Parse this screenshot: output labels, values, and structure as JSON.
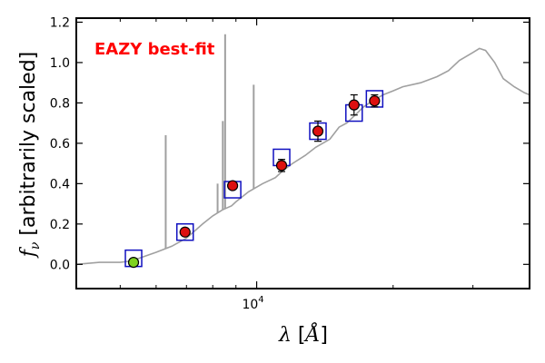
{
  "chart_data": {
    "type": "scatter",
    "title": "",
    "annotation": "EAZY best-fit",
    "annotation_position": "top-left",
    "annotation_color": "#ff0000",
    "xlabel": "λ [Å]",
    "ylabel": "f_ν [arbitrarily scaled]",
    "xscale": "log",
    "xlim": [
      4000,
      40000
    ],
    "ylim": [
      -0.12,
      1.22
    ],
    "yticks": [
      {
        "value": 0.0,
        "label": "0.0"
      },
      {
        "value": 0.2,
        "label": "0.2"
      },
      {
        "value": 0.4,
        "label": "0.4"
      },
      {
        "value": 0.6,
        "label": "0.6"
      },
      {
        "value": 0.8,
        "label": "0.8"
      },
      {
        "value": 1.0,
        "label": "1.0"
      },
      {
        "value": 1.2,
        "label": "1.2"
      }
    ],
    "xticks_major": [
      {
        "value": 10000,
        "base": "10",
        "exp": "4"
      }
    ],
    "xticks_minor": [
      5000,
      6000,
      7000,
      8000,
      9000,
      20000,
      30000
    ],
    "grid": false,
    "colors": {
      "sed": "#a0a0a0",
      "model_box": "#1010c0",
      "observed": "#dd1010",
      "upper_limit": "#7ed31e",
      "errorbar": "#000000"
    },
    "sed": [
      [
        4000,
        0.0
      ],
      [
        4500,
        0.01
      ],
      [
        5000,
        0.01
      ],
      [
        5200,
        0.015
      ],
      [
        5500,
        0.03
      ],
      [
        6000,
        0.06
      ],
      [
        6500,
        0.09
      ],
      [
        7000,
        0.13
      ],
      [
        7600,
        0.2
      ],
      [
        8000,
        0.24
      ],
      [
        8400,
        0.27
      ],
      [
        8800,
        0.29
      ],
      [
        9000,
        0.31
      ],
      [
        9600,
        0.36
      ],
      [
        10300,
        0.4
      ],
      [
        11000,
        0.43
      ],
      [
        11500,
        0.47
      ],
      [
        12000,
        0.5
      ],
      [
        12800,
        0.54
      ],
      [
        13500,
        0.58
      ],
      [
        14500,
        0.62
      ],
      [
        15200,
        0.68
      ],
      [
        15800,
        0.7
      ],
      [
        16500,
        0.74
      ],
      [
        17200,
        0.78
      ],
      [
        18000,
        0.81
      ],
      [
        19000,
        0.84
      ],
      [
        20000,
        0.86
      ],
      [
        21000,
        0.88
      ],
      [
        23000,
        0.9
      ],
      [
        25000,
        0.93
      ],
      [
        26500,
        0.96
      ],
      [
        28000,
        1.01
      ],
      [
        30000,
        1.05
      ],
      [
        31000,
        1.07
      ],
      [
        32000,
        1.06
      ],
      [
        33500,
        1.0
      ],
      [
        35000,
        0.92
      ],
      [
        37000,
        0.88
      ],
      [
        39000,
        0.85
      ],
      [
        40000,
        0.84
      ]
    ],
    "emission_lines": [
      {
        "x": 6300,
        "peak": 0.64
      },
      {
        "x": 8200,
        "peak": 0.4
      },
      {
        "x": 8420,
        "peak": 0.71
      },
      {
        "x": 8520,
        "peak": 1.14
      },
      {
        "x": 9850,
        "peak": 0.89
      }
    ],
    "model_fluxes": [
      {
        "x": 5350,
        "y": 0.03
      },
      {
        "x": 6950,
        "y": 0.16
      },
      {
        "x": 8850,
        "y": 0.37
      },
      {
        "x": 11350,
        "y": 0.53
      },
      {
        "x": 13650,
        "y": 0.66
      },
      {
        "x": 16400,
        "y": 0.75
      },
      {
        "x": 18200,
        "y": 0.82
      }
    ],
    "observed_fluxes": [
      {
        "x": 5350,
        "y": 0.01,
        "err": 0.0,
        "type": "upper_limit"
      },
      {
        "x": 6950,
        "y": 0.16,
        "err": 0.01,
        "type": "detection"
      },
      {
        "x": 8850,
        "y": 0.39,
        "err": 0.01,
        "type": "detection"
      },
      {
        "x": 11350,
        "y": 0.49,
        "err": 0.03,
        "type": "detection"
      },
      {
        "x": 13650,
        "y": 0.66,
        "err": 0.05,
        "type": "detection"
      },
      {
        "x": 16400,
        "y": 0.79,
        "err": 0.05,
        "type": "detection"
      },
      {
        "x": 18200,
        "y": 0.81,
        "err": 0.03,
        "type": "detection"
      }
    ]
  }
}
